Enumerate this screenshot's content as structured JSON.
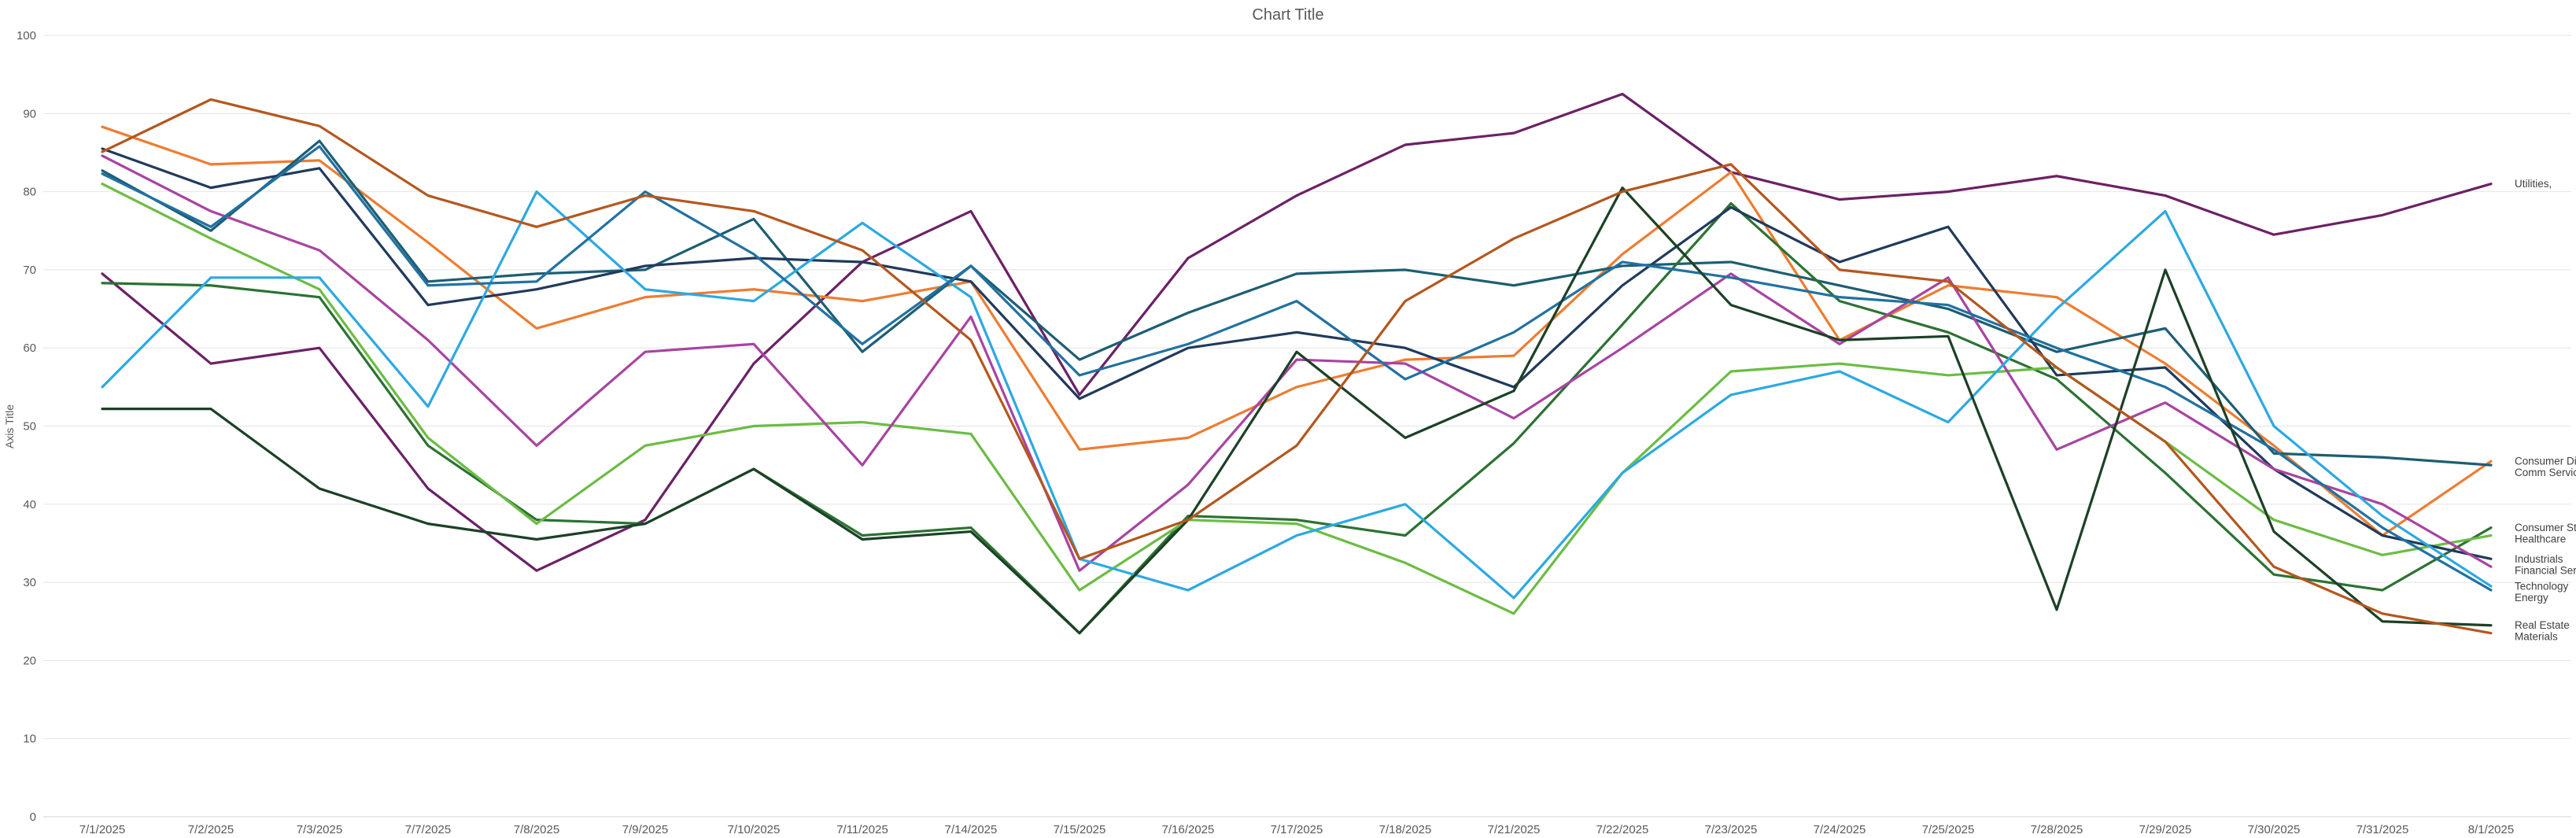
{
  "title": "Chart Title",
  "y_axis": {
    "title": "Axis Title",
    "min": 0,
    "max": 100,
    "tick_step": 10,
    "tick_labels": [
      "0",
      "10",
      "20",
      "30",
      "40",
      "50",
      "60",
      "70",
      "80",
      "90",
      "100"
    ]
  },
  "x_axis": {
    "labels": [
      "7/1/2025",
      "7/2/2025",
      "7/3/2025",
      "7/7/2025",
      "7/8/2025",
      "7/9/2025",
      "7/10/2025",
      "7/11/2025",
      "7/14/2025",
      "7/15/2025",
      "7/16/2025",
      "7/17/2025",
      "7/18/2025",
      "7/21/2025",
      "7/22/2025",
      "7/23/2025",
      "7/24/2025",
      "7/25/2025",
      "7/28/2025",
      "7/29/2025",
      "7/30/2025",
      "7/31/2025",
      "8/1/2025"
    ]
  },
  "colors": {
    "background": "#ffffff",
    "gridline": "#e4e4e4",
    "baseline": "#d6d6d6",
    "tick_text": "#595959",
    "title_text": "#595959",
    "end_label_text": "#3f3f3f"
  },
  "chart_data": {
    "type": "line",
    "title": "Chart Title",
    "xlabel": "",
    "ylabel": "Axis Title",
    "ylim": [
      0,
      100
    ],
    "grid": "horizontal",
    "legend_position": "right-end-labels",
    "x": [
      "7/1/2025",
      "7/2/2025",
      "7/3/2025",
      "7/7/2025",
      "7/8/2025",
      "7/9/2025",
      "7/10/2025",
      "7/11/2025",
      "7/14/2025",
      "7/15/2025",
      "7/16/2025",
      "7/17/2025",
      "7/18/2025",
      "7/21/2025",
      "7/22/2025",
      "7/23/2025",
      "7/24/2025",
      "7/25/2025",
      "7/28/2025",
      "7/29/2025",
      "7/30/2025",
      "7/31/2025",
      "8/1/2025"
    ],
    "series": [
      {
        "name": "Utilities",
        "end_label": "Utilities,",
        "color": "#6b2166",
        "values": [
          69.5,
          58,
          60,
          42,
          31.5,
          38,
          58,
          71,
          77.5,
          54,
          71.5,
          79.5,
          86,
          87.5,
          92.5,
          82.5,
          79,
          80,
          82,
          79.5,
          74.5,
          77,
          81
        ]
      },
      {
        "name": "Consumer Disc",
        "end_label": "Consumer Disc,",
        "color": "#ed7d31",
        "values": [
          88.3,
          83.5,
          84,
          73.5,
          62.5,
          66.5,
          67.5,
          66,
          68.5,
          47,
          48.5,
          55,
          58.5,
          59,
          72,
          82.5,
          61,
          68,
          66.5,
          58,
          47.5,
          36,
          45.5
        ]
      },
      {
        "name": "Comm Services",
        "end_label": "Comm Services",
        "color": "#1d5e73",
        "values": [
          82.7,
          75,
          86.5,
          68.5,
          69.5,
          70,
          76.5,
          59.5,
          70.5,
          58.5,
          64.5,
          69.5,
          70,
          68,
          70.5,
          71,
          68,
          65,
          59.5,
          62.5,
          46.5,
          46,
          45
        ]
      },
      {
        "name": "Consumer Staples",
        "end_label": "Consumer Staples,",
        "color": "#2c7233",
        "values": [
          68.3,
          68,
          66.5,
          47.5,
          38,
          37.5,
          44.5,
          36,
          37,
          23.5,
          38.5,
          38,
          36,
          47.8,
          63,
          78.5,
          66,
          62,
          56,
          44,
          31,
          29,
          37
        ]
      },
      {
        "name": "Healthcare",
        "end_label": "Healthcare",
        "color": "#6cbc44",
        "values": [
          81,
          74,
          67.5,
          48.5,
          37.5,
          47.5,
          50,
          50.5,
          49,
          29,
          38,
          37.5,
          32.5,
          26,
          44,
          57,
          58,
          56.5,
          57.5,
          48,
          38,
          33.5,
          36
        ]
      },
      {
        "name": "Industrials",
        "end_label": "Industrials",
        "color": "#203a5c",
        "values": [
          85.5,
          80.5,
          83,
          65.5,
          67.5,
          70.5,
          71.5,
          71,
          68.5,
          53.5,
          60,
          62,
          60,
          55,
          68,
          78,
          71,
          75.5,
          56.5,
          57.5,
          44.5,
          36,
          33
        ]
      },
      {
        "name": "Financial Services",
        "end_label": "Financial Services",
        "color": "#a844a1",
        "values": [
          84.6,
          77.5,
          72.5,
          61,
          47.5,
          59.5,
          60.5,
          45,
          64,
          31.5,
          42.5,
          58.5,
          58,
          51,
          60,
          69.5,
          60.5,
          69,
          47,
          53,
          44.5,
          40,
          32
        ]
      },
      {
        "name": "Technology",
        "end_label": "Technology",
        "color": "#2ca9e1",
        "values": [
          55,
          69,
          69,
          52.5,
          80,
          67.5,
          66,
          76,
          66.5,
          33,
          29,
          36,
          40,
          28,
          44,
          54,
          57,
          50.5,
          65,
          77.5,
          50,
          38.5,
          29.5
        ]
      },
      {
        "name": "Energy",
        "end_label": "Energy",
        "color": "#2171a0",
        "values": [
          82.3,
          75.5,
          85.8,
          68,
          68.5,
          80,
          72,
          60.5,
          70.5,
          56.5,
          60.5,
          66,
          56,
          62,
          71,
          69,
          66.5,
          65.5,
          60,
          55,
          47,
          37,
          29
        ]
      },
      {
        "name": "Real Estate",
        "end_label": "Real Estate",
        "color": "#1c4126",
        "values": [
          52.2,
          52.2,
          42,
          37.5,
          35.5,
          37.5,
          44.5,
          35.5,
          36.5,
          23.5,
          38,
          59.5,
          48.5,
          54.5,
          80.5,
          65.5,
          61,
          61.5,
          26.5,
          70,
          36.5,
          25,
          24.5
        ]
      },
      {
        "name": "Materials",
        "end_label": "Materials",
        "color": "#b4571e",
        "values": [
          85.1,
          91.8,
          88.4,
          79.5,
          75.5,
          79.5,
          77.5,
          72.5,
          61,
          33,
          38,
          47.5,
          66,
          74,
          80,
          83.5,
          70,
          68.5,
          57.5,
          48,
          32,
          26,
          23.5
        ]
      }
    ]
  }
}
